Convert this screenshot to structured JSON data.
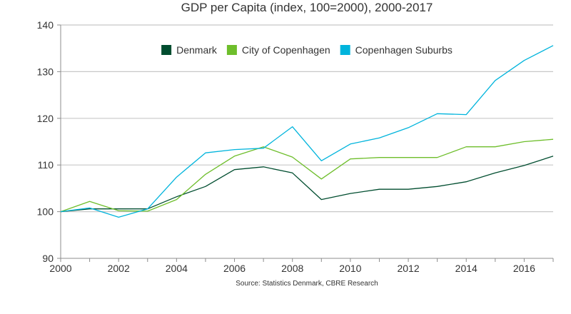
{
  "chart_data": {
    "type": "line",
    "title": "GDP per Capita (index, 100=2000), 2000-2017",
    "source": "Source: Statistics Denmark, CBRE Research",
    "x": [
      2000,
      2001,
      2002,
      2003,
      2004,
      2005,
      2006,
      2007,
      2008,
      2009,
      2010,
      2011,
      2012,
      2013,
      2014,
      2015,
      2016,
      2017
    ],
    "xlim": [
      2000,
      2017
    ],
    "xticks": [
      "2000",
      "2002",
      "2004",
      "2006",
      "2008",
      "2010",
      "2012",
      "2014",
      "2016"
    ],
    "ylim": [
      90,
      140
    ],
    "yticks": [
      "90",
      "100",
      "110",
      "120",
      "130",
      "140"
    ],
    "grid": true,
    "legend_position": "top-center",
    "series": [
      {
        "name": "Denmark",
        "color": "#004d2f",
        "values": [
          100,
          100.6,
          100.6,
          100.6,
          103.2,
          105.4,
          109.0,
          109.6,
          108.3,
          102.6,
          103.9,
          104.8,
          104.8,
          105.4,
          106.4,
          108.3,
          109.9,
          111.9
        ]
      },
      {
        "name": "City of Copenhagen",
        "color": "#6ebe2b",
        "values": [
          100,
          102.2,
          100.2,
          100.1,
          102.6,
          108.0,
          111.9,
          113.9,
          111.7,
          107.0,
          111.3,
          111.6,
          111.6,
          111.6,
          113.9,
          113.9,
          115.0,
          115.5
        ]
      },
      {
        "name": "Copenhagen Suburbs",
        "color": "#00b4dc",
        "values": [
          100,
          100.8,
          98.8,
          100.6,
          107.4,
          112.6,
          113.3,
          113.6,
          118.2,
          110.9,
          114.5,
          115.8,
          118.0,
          121.0,
          120.8,
          128.1,
          132.4,
          135.6
        ]
      }
    ]
  }
}
